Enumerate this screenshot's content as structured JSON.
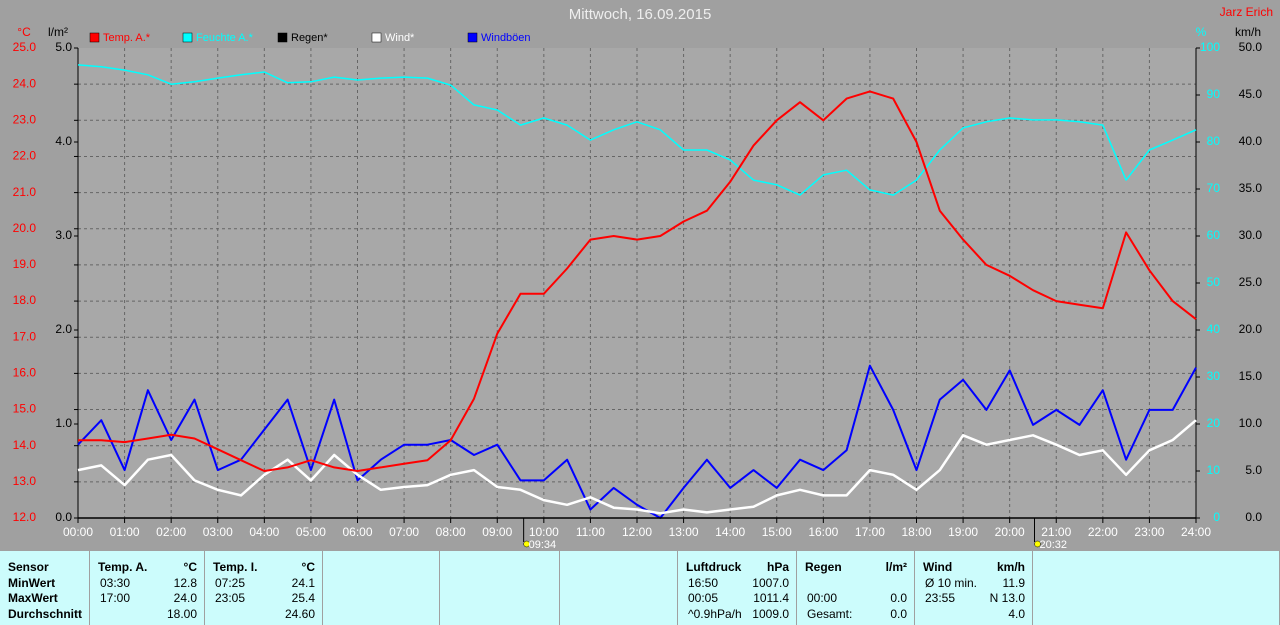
{
  "chart_data": {
    "type": "line",
    "title": "Mittwoch, 16.09.2015",
    "author": "Jarz Erich",
    "axis_labels": {
      "y": "°C",
      "y2": "l/m²",
      "y3": "%",
      "y4": "km/h"
    },
    "x": [
      "00:00",
      "00:30",
      "01:00",
      "01:30",
      "02:00",
      "02:30",
      "03:00",
      "03:30",
      "04:00",
      "04:30",
      "05:00",
      "05:30",
      "06:00",
      "06:30",
      "07:00",
      "07:30",
      "08:00",
      "08:30",
      "09:00",
      "09:30",
      "10:00",
      "10:30",
      "11:00",
      "11:30",
      "12:00",
      "12:30",
      "13:00",
      "13:30",
      "14:00",
      "14:30",
      "15:00",
      "15:30",
      "16:00",
      "16:30",
      "17:00",
      "17:30",
      "18:00",
      "18:30",
      "19:00",
      "19:30",
      "20:00",
      "20:30",
      "21:00",
      "21:30",
      "22:00",
      "22:30",
      "23:00",
      "23:30",
      "24:00"
    ],
    "xticks": [
      "00:00",
      "01:00",
      "02:00",
      "03:00",
      "04:00",
      "05:00",
      "06:00",
      "07:00",
      "08:00",
      "09:00",
      "10:00",
      "11:00",
      "12:00",
      "13:00",
      "14:00",
      "15:00",
      "16:00",
      "17:00",
      "18:00",
      "19:00",
      "20:00",
      "21:00",
      "22:00",
      "23:00",
      "24:00"
    ],
    "xlim": [
      "00:00",
      "24:00"
    ],
    "ylim": [
      12,
      25
    ],
    "yticks": [
      {
        "value": 12,
        "label": "12.0"
      },
      {
        "value": 13,
        "label": "13.0"
      },
      {
        "value": 14,
        "label": "14.0"
      },
      {
        "value": 15,
        "label": "15.0"
      },
      {
        "value": 16,
        "label": "16.0"
      },
      {
        "value": 17,
        "label": "17.0"
      },
      {
        "value": 18,
        "label": "18.0"
      },
      {
        "value": 19,
        "label": "19.0"
      },
      {
        "value": 20,
        "label": "20.0"
      },
      {
        "value": 21,
        "label": "21.0"
      },
      {
        "value": 22,
        "label": "22.0"
      },
      {
        "value": 23,
        "label": "23.0"
      },
      {
        "value": 24,
        "label": "24.0"
      },
      {
        "value": 25,
        "label": "25.0"
      }
    ],
    "y2lim": [
      0,
      5
    ],
    "y2ticks": [
      {
        "value": 0,
        "label": "0.0"
      },
      {
        "value": 1,
        "label": "1.0"
      },
      {
        "value": 2,
        "label": "2.0"
      },
      {
        "value": 3,
        "label": "3.0"
      },
      {
        "value": 4,
        "label": "4.0"
      },
      {
        "value": 5,
        "label": "5.0"
      }
    ],
    "y3lim": [
      0,
      100
    ],
    "y3ticks": [
      0,
      10,
      20,
      30,
      40,
      50,
      60,
      70,
      80,
      90,
      100
    ],
    "y4lim": [
      0,
      50
    ],
    "y4ticks": [
      {
        "value": 0,
        "label": "0.0"
      },
      {
        "value": 5,
        "label": "5.0"
      },
      {
        "value": 10,
        "label": "10.0"
      },
      {
        "value": 15,
        "label": "15.0"
      },
      {
        "value": 20,
        "label": "20.0"
      },
      {
        "value": 25,
        "label": "25.0"
      },
      {
        "value": 30,
        "label": "30.0"
      },
      {
        "value": 35,
        "label": "35.0"
      },
      {
        "value": 40,
        "label": "40.0"
      },
      {
        "value": 45,
        "label": "45.0"
      },
      {
        "value": 50,
        "label": "50.0"
      }
    ],
    "grid": true,
    "annotations": [
      {
        "label": "09:34",
        "x": "09:34"
      },
      {
        "label": "20:32",
        "x": "20:32"
      }
    ],
    "series": [
      {
        "name": "Temp. A.*",
        "color": "#ff0000",
        "axis": "y",
        "values": [
          14.15,
          14.15,
          14.1,
          14.2,
          14.3,
          14.2,
          13.9,
          13.6,
          13.3,
          13.4,
          13.6,
          13.4,
          13.3,
          13.4,
          13.5,
          13.6,
          14.15,
          15.3,
          17.1,
          18.2,
          18.2,
          18.9,
          19.7,
          19.8,
          19.7,
          19.8,
          20.2,
          20.5,
          21.3,
          22.3,
          23.0,
          23.5,
          23.0,
          23.6,
          23.8,
          23.6,
          22.4,
          20.5,
          19.7,
          19.0,
          18.7,
          18.3,
          18.0,
          17.9,
          17.8,
          19.9,
          18.85,
          18.0,
          17.5
        ]
      },
      {
        "name": "Feuchte A.*",
        "color": "#00ffff",
        "axis": "y3",
        "values": [
          96.4,
          96,
          95.3,
          94.3,
          92.3,
          92.8,
          93.6,
          94.3,
          94.9,
          92.6,
          92.8,
          93.8,
          93.2,
          93.6,
          93.8,
          93.6,
          92.1,
          87.9,
          86.8,
          83.6,
          85.1,
          83.6,
          80.4,
          82.6,
          84.3,
          82.6,
          78.3,
          78.3,
          76.2,
          71.9,
          70.9,
          68.7,
          73.0,
          74.0,
          69.8,
          68.7,
          71.9,
          78.3,
          83.0,
          84.3,
          85.1,
          84.7,
          84.7,
          84.3,
          83.6,
          71.9,
          78.3,
          80.4,
          82.6
        ]
      },
      {
        "name": "Regen*",
        "color": "#000000",
        "axis": "y2",
        "values": [
          0,
          0,
          0,
          0,
          0,
          0,
          0,
          0,
          0,
          0,
          0,
          0,
          0,
          0,
          0,
          0,
          0,
          0,
          0,
          0,
          0,
          0,
          0,
          0,
          0,
          0,
          0,
          0,
          0,
          0,
          0,
          0,
          0,
          0,
          0,
          0,
          0,
          0,
          0,
          0,
          0,
          0,
          0,
          0,
          0,
          0,
          0,
          0,
          0
        ]
      },
      {
        "name": "Wind*",
        "color": "#ffffff",
        "axis": "y4",
        "values": [
          5.1,
          5.6,
          3.5,
          6.2,
          6.7,
          4.0,
          3.0,
          2.4,
          4.6,
          6.2,
          4.0,
          6.7,
          4.6,
          3.0,
          3.3,
          3.5,
          4.6,
          5.1,
          3.3,
          3.0,
          1.9,
          1.4,
          2.2,
          1.1,
          0.9,
          0.5,
          0.9,
          0.6,
          0.9,
          1.2,
          2.4,
          3.0,
          2.4,
          2.4,
          5.1,
          4.6,
          3.0,
          5.1,
          8.8,
          7.8,
          8.3,
          8.8,
          7.8,
          6.7,
          7.2,
          4.6,
          7.2,
          8.3,
          10.4
        ]
      },
      {
        "name": "Windböen",
        "color": "#0000ff",
        "axis": "y4",
        "values": [
          7.8,
          10.4,
          5.1,
          13.6,
          8.3,
          12.6,
          5.1,
          6.2,
          9.4,
          12.6,
          5.1,
          12.6,
          4.0,
          6.2,
          7.8,
          7.8,
          8.3,
          6.7,
          7.8,
          4.0,
          4.0,
          6.2,
          0.9,
          3.2,
          1.4,
          0,
          3.2,
          6.2,
          3.2,
          5.1,
          3.2,
          6.2,
          5.1,
          7.2,
          16.2,
          11.5,
          5.1,
          12.6,
          14.7,
          11.5,
          15.7,
          9.9,
          11.5,
          9.9,
          13.6,
          6.2,
          11.5,
          11.5,
          16.0
        ]
      }
    ]
  },
  "table": {
    "row_labels": [
      "Sensor",
      "MinWert",
      "MaxWert",
      "Durchschnitt"
    ],
    "groups": [
      {
        "title": "Temp. A.",
        "unit": "°C",
        "cells": [
          [
            "03:30",
            "12.8"
          ],
          [
            "17:00",
            "24.0"
          ],
          [
            null,
            "18.00"
          ]
        ]
      },
      {
        "title": "Temp. I.",
        "unit": "°C",
        "cells": [
          [
            "07:25",
            "24.1"
          ],
          [
            "23:05",
            "25.4"
          ],
          [
            null,
            "24.60"
          ]
        ]
      },
      {
        "title": "Luftdruck",
        "unit": "hPa",
        "cells": [
          [
            "16:50",
            "1007.0"
          ],
          [
            "00:05",
            "1011.4"
          ],
          [
            "^0.9hPa/h",
            "1009.0"
          ]
        ]
      },
      {
        "title": "Regen",
        "unit": "l/m²",
        "cells": [
          null,
          [
            "00:00",
            "0.0"
          ],
          [
            "Gesamt:",
            "0.0"
          ]
        ]
      },
      {
        "title": "Wind",
        "unit": "km/h",
        "cells": [
          [
            "Ø 10 min.",
            "11.9"
          ],
          [
            "23:55",
            "N 13.0"
          ],
          [
            null,
            "4.0"
          ]
        ]
      }
    ]
  }
}
